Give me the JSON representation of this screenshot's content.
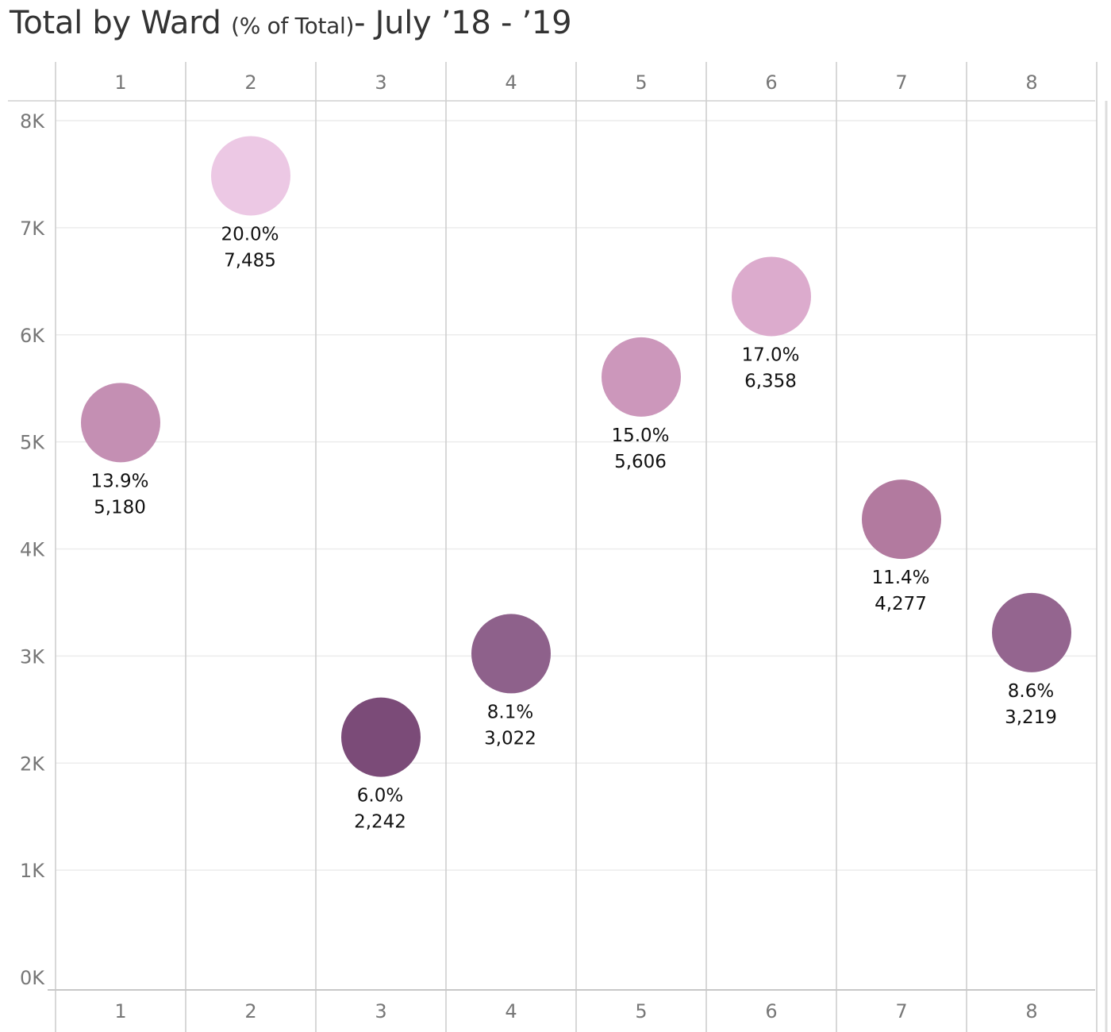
{
  "title": {
    "main": "Total by Ward",
    "sub": "(% of Total)",
    "suffix": "- July ’18 - ’19"
  },
  "chart_data": {
    "type": "scatter",
    "categories": [
      "1",
      "2",
      "3",
      "4",
      "5",
      "6",
      "7",
      "8"
    ],
    "values": [
      5180,
      7485,
      2242,
      3022,
      5606,
      6358,
      4277,
      3219
    ],
    "value_labels": [
      "5,180",
      "7,485",
      "2,242",
      "3,022",
      "5,606",
      "6,358",
      "4,277",
      "3,219"
    ],
    "percent_labels": [
      "13.9%",
      "20.0%",
      "6.0%",
      "8.1%",
      "15.0%",
      "17.0%",
      "11.4%",
      "8.6%"
    ],
    "colors": [
      "#c48fb3",
      "#ecc8e4",
      "#7b4b78",
      "#8e618b",
      "#cc97bb",
      "#dcabcd",
      "#b27a9f",
      "#94658f"
    ],
    "y_ticks": [
      0,
      1000,
      2000,
      3000,
      4000,
      5000,
      6000,
      7000,
      8000
    ],
    "y_tick_labels": [
      "0K",
      "1K",
      "2K",
      "3K",
      "4K",
      "5K",
      "6K",
      "7K",
      "8K"
    ],
    "ylim": [
      0,
      8000
    ],
    "xlabel": "",
    "ylabel": "",
    "grid": true,
    "x_header_top": true,
    "x_header_bottom": true,
    "legend": "none"
  }
}
